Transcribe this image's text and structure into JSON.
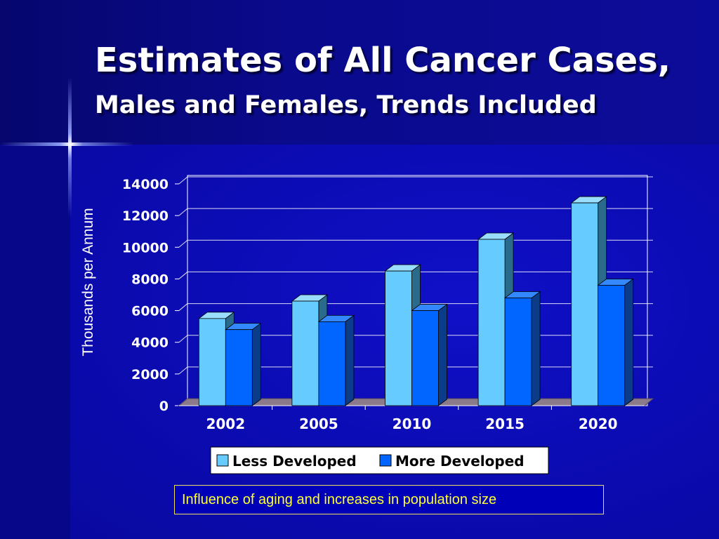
{
  "slide": {
    "title": "Estimates of All Cancer Cases,",
    "subtitle": "Males and Females, Trends Included",
    "note": "Influence of aging and increases in population size"
  },
  "colors": {
    "less_developed": "#66ccff",
    "more_developed": "#0066ff",
    "axis_text": "#ffffff",
    "floor": "#8a7a8a",
    "grid": "#ffffff"
  },
  "chart_data": {
    "type": "bar",
    "style": "3d-clustered",
    "title": "",
    "xlabel": "",
    "ylabel": "Thousands per Annum",
    "categories": [
      "2002",
      "2005",
      "2010",
      "2015",
      "2020"
    ],
    "series": [
      {
        "name": "Less Developed",
        "values": [
          5500,
          6600,
          8500,
          10500,
          12800
        ]
      },
      {
        "name": "More Developed",
        "values": [
          4800,
          5300,
          6000,
          6800,
          7600
        ]
      }
    ],
    "ylim": [
      0,
      14000
    ],
    "yticks": [
      0,
      2000,
      4000,
      6000,
      8000,
      10000,
      12000,
      14000
    ],
    "grid": true,
    "legend": "bottom"
  }
}
